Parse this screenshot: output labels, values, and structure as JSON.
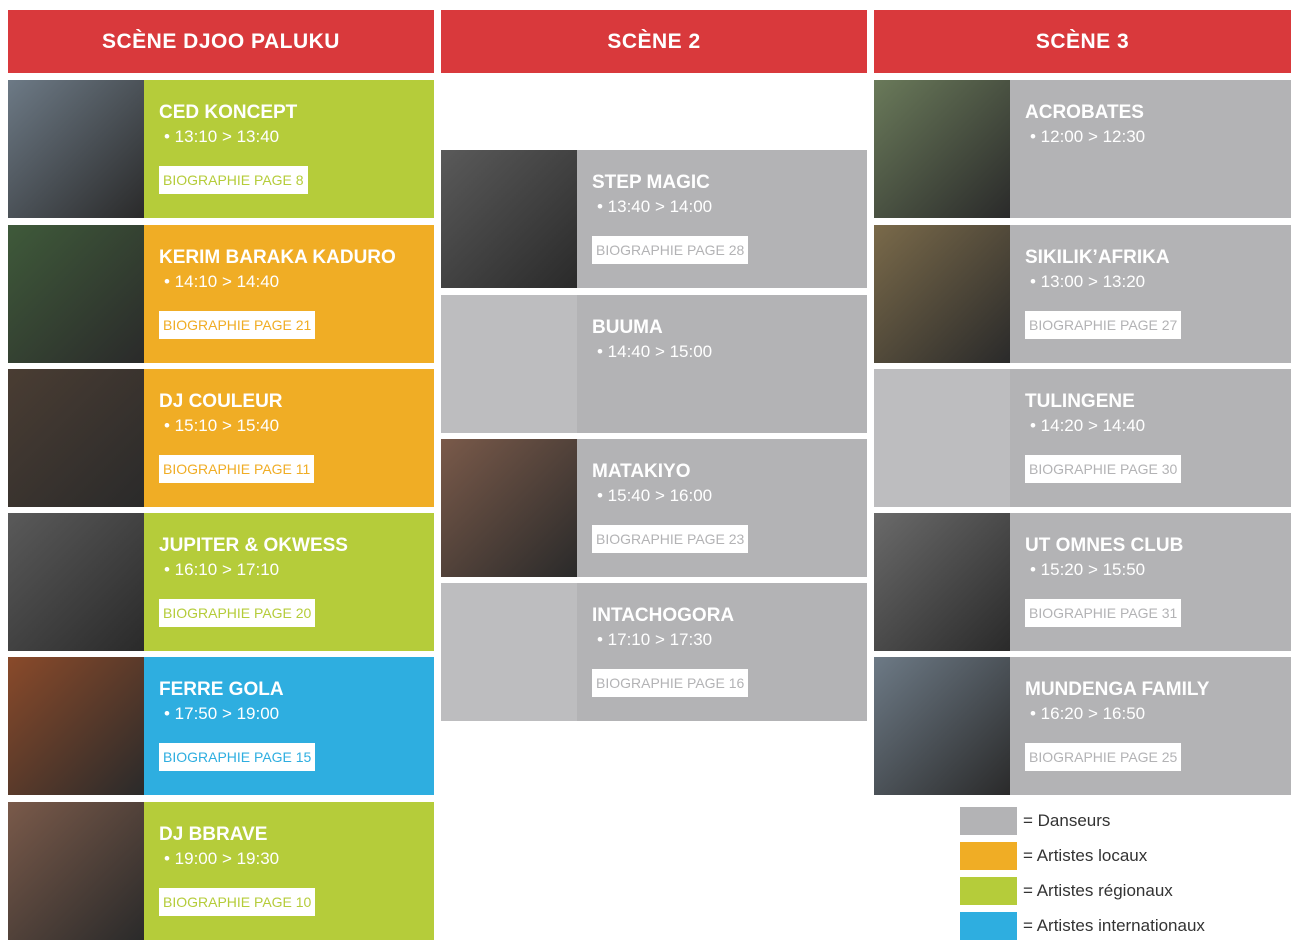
{
  "columns": [
    {
      "title": "SCÈNE DJOO PALUKU",
      "items": [
        {
          "name": "CED KONCEPT",
          "time": "• 13:10 > 13:40",
          "bio": "BIOGRAPHIE PAGE 8",
          "color": "#b5cc3a"
        },
        {
          "name": "KERIM BARAKA KADURO",
          "time": "• 14:10 > 14:40",
          "bio": "BIOGRAPHIE PAGE 21",
          "color": "#f0ad25"
        },
        {
          "name": "DJ COULEUR",
          "time": "• 15:10 > 15:40",
          "bio": "BIOGRAPHIE PAGE 11",
          "color": "#f0ad25"
        },
        {
          "name": "JUPITER & OKWESS",
          "time": "• 16:10 > 17:10",
          "bio": "BIOGRAPHIE PAGE 20",
          "color": "#b5cc3a"
        },
        {
          "name": "FERRE GOLA",
          "time": "• 17:50 > 19:00",
          "bio": "BIOGRAPHIE PAGE 15",
          "color": "#2eaee0"
        },
        {
          "name": "DJ BBRAVE",
          "time": "• 19:00 > 19:30",
          "bio": "BIOGRAPHIE PAGE 10",
          "color": "#b5cc3a"
        }
      ]
    },
    {
      "title": "SCÈNE 2",
      "items": [
        {
          "name": "STEP MAGIC",
          "time": "• 13:40 > 14:00",
          "bio": "BIOGRAPHIE PAGE 28",
          "color": "#b3b3b5"
        },
        {
          "name": "BUUMA",
          "time": "• 14:40 > 15:00",
          "color": "#b3b3b5"
        },
        {
          "name": "MATAKIYO",
          "time": "• 15:40 > 16:00",
          "bio": "BIOGRAPHIE PAGE 23",
          "color": "#b3b3b5"
        },
        {
          "name": "INTACHOGORA",
          "time": "• 17:10 > 17:30",
          "bio": "BIOGRAPHIE PAGE 16",
          "color": "#b3b3b5"
        }
      ]
    },
    {
      "title": "SCÈNE 3",
      "items": [
        {
          "name": "ACROBATES",
          "time": "• 12:00 > 12:30",
          "color": "#b3b3b5"
        },
        {
          "name": "SIKILIK’AFRIKA",
          "time": "• 13:00 > 13:20",
          "bio": "BIOGRAPHIE PAGE 27",
          "color": "#b3b3b5"
        },
        {
          "name": "TULINGENE",
          "time": "• 14:20 > 14:40",
          "bio": "BIOGRAPHIE PAGE 30",
          "color": "#b3b3b5"
        },
        {
          "name": "UT OMNES CLUB",
          "time": "• 15:20 > 15:50",
          "bio": "BIOGRAPHIE PAGE 31",
          "color": "#b3b3b5"
        },
        {
          "name": "MUNDENGA FAMILY",
          "time": "• 16:20 > 16:50",
          "bio": "BIOGRAPHIE PAGE 25",
          "color": "#b3b3b5"
        }
      ]
    }
  ],
  "legend": [
    {
      "label": "= Danseurs",
      "color": "#b3b3b5"
    },
    {
      "label": "= Artistes locaux",
      "color": "#f0ad25"
    },
    {
      "label": "= Artistes régionaux",
      "color": "#b5cc3a"
    },
    {
      "label": "= Artistes internationaux",
      "color": "#2eaee0"
    }
  ]
}
